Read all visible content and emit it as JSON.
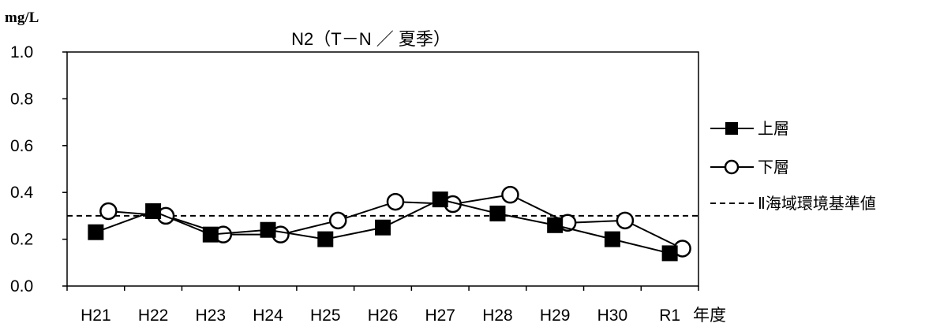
{
  "chart_data": {
    "type": "line",
    "title": "N2（T－N ／ 夏季）",
    "ylabel": "mg/L",
    "xlabel": "年度",
    "ylim": [
      0,
      1.0
    ],
    "yticks": [
      "0.0",
      "0.2",
      "0.4",
      "0.6",
      "0.8",
      "1.0"
    ],
    "categories": [
      "H21",
      "H22",
      "H23",
      "H24",
      "H25",
      "H26",
      "H27",
      "H28",
      "H29",
      "H30",
      "R1"
    ],
    "series": [
      {
        "name": "上層",
        "marker": "filled-square",
        "color": "#000000",
        "values": [
          0.23,
          0.32,
          0.22,
          0.24,
          0.2,
          0.25,
          0.37,
          0.31,
          0.26,
          0.2,
          0.14
        ]
      },
      {
        "name": "下層",
        "marker": "open-circle",
        "color": "#000000",
        "values": [
          0.32,
          0.3,
          0.22,
          0.22,
          0.28,
          0.36,
          0.35,
          0.39,
          0.27,
          0.28,
          0.16
        ]
      }
    ],
    "reference_line": {
      "name": "Ⅱ海域環境基準値",
      "value": 0.3,
      "style": "dashed"
    },
    "grid": false,
    "legend": "right"
  }
}
